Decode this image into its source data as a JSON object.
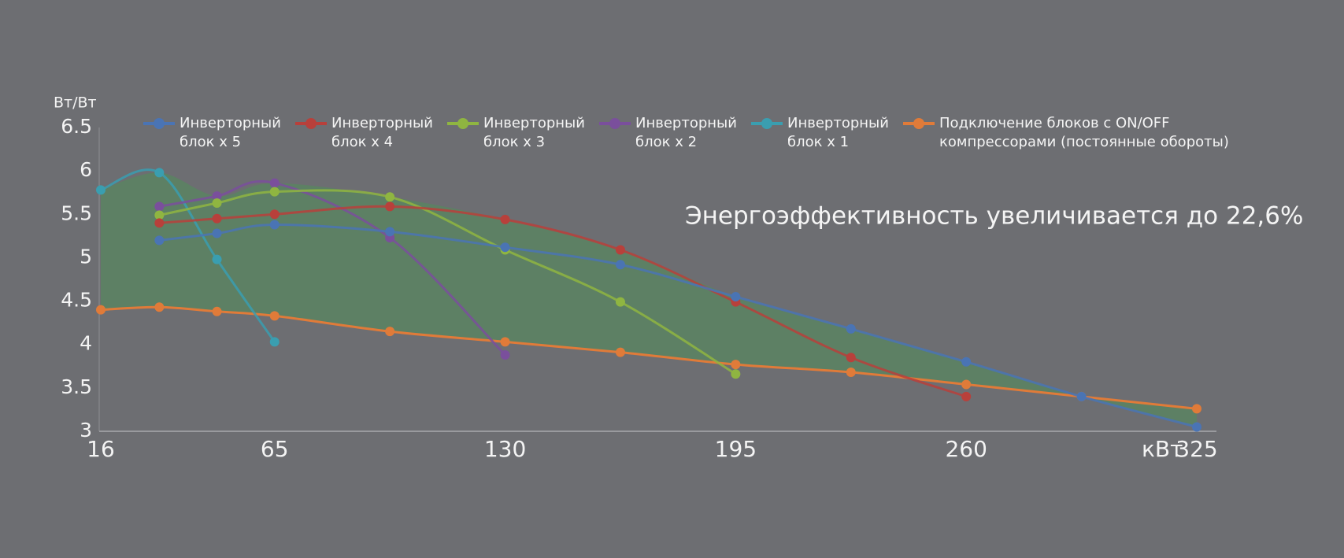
{
  "chart_data": {
    "type": "line",
    "ylabel": "Вт/Вт",
    "xlabel": "кВт",
    "annotation": "Энергоэффективность увеличивается до 22,6%",
    "x": [
      16,
      32.5,
      48.75,
      65,
      97.5,
      130,
      162.5,
      195,
      227.5,
      260,
      292.5,
      325
    ],
    "xlim": [
      16,
      325
    ],
    "xticks": [
      16,
      65,
      130,
      195,
      260,
      325
    ],
    "ylim": [
      3,
      6.5
    ],
    "yticks": [
      3,
      3.5,
      4,
      4.5,
      5,
      5.5,
      6,
      6.5
    ],
    "grid": false,
    "legend": "top",
    "area_color": "#5b8263",
    "series": [
      {
        "name": "Инверторный блок x 5",
        "color": "#4a74b4",
        "values": [
          null,
          5.2,
          5.28,
          5.38,
          5.3,
          5.12,
          4.92,
          4.55,
          4.18,
          3.8,
          3.4,
          3.05
        ]
      },
      {
        "name": "Инверторный блок x 4",
        "color": "#b8403b",
        "values": [
          null,
          5.4,
          5.45,
          5.5,
          5.59,
          5.44,
          5.09,
          4.49,
          3.85,
          3.4,
          null,
          null
        ]
      },
      {
        "name": "Инверторный блок x 3",
        "color": "#8fb541",
        "values": [
          null,
          5.49,
          5.63,
          5.76,
          5.7,
          5.09,
          4.49,
          3.66,
          null,
          null,
          null,
          null
        ]
      },
      {
        "name": "Инверторный блок x 2",
        "color": "#7a4f9c",
        "values": [
          null,
          5.59,
          5.71,
          5.86,
          5.23,
          3.88,
          null,
          null,
          null,
          null,
          null,
          null
        ]
      },
      {
        "name": "Инверторный блок x 1",
        "color": "#3a9eb0",
        "values": [
          5.78,
          5.98,
          4.98,
          4.03,
          null,
          null,
          null,
          null,
          null,
          null,
          null,
          null
        ]
      },
      {
        "name": "Подключение блоков с ON/OFF компрессорами (постоянные обороты)",
        "color": "#e07b39",
        "values": [
          4.4,
          4.43,
          4.38,
          4.33,
          4.15,
          4.03,
          3.91,
          3.77,
          3.68,
          3.54,
          3.4,
          3.26
        ]
      }
    ]
  }
}
